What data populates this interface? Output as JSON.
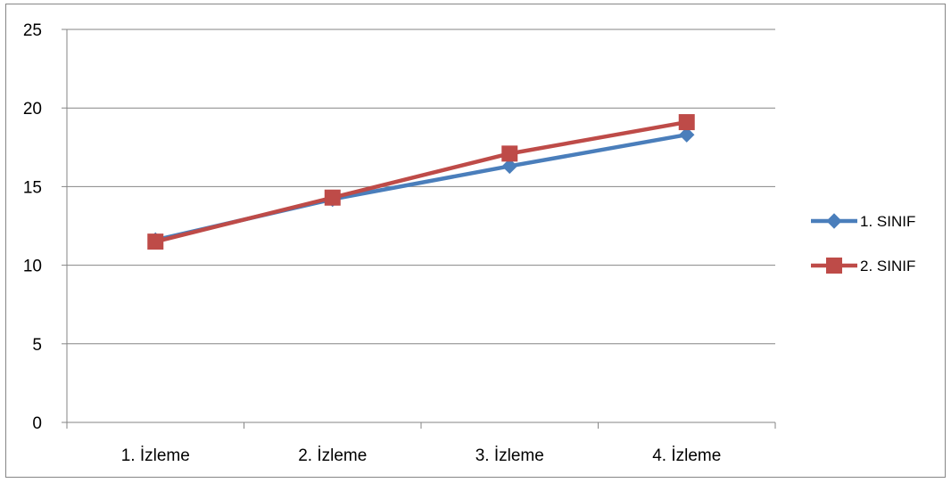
{
  "chart_data": {
    "type": "line",
    "categories": [
      "1. İzleme",
      "2. İzleme",
      "3. İzleme",
      "4. İzleme"
    ],
    "ylim": [
      0,
      25
    ],
    "yticks": [
      0,
      5,
      10,
      15,
      20,
      25
    ],
    "grid": true,
    "legend_position": "right",
    "series": [
      {
        "name": "1. SINIF",
        "values": [
          11.6,
          14.2,
          16.3,
          18.3
        ],
        "color": "#4A7EBB",
        "marker": "diamond"
      },
      {
        "name": "2. SINIF",
        "values": [
          11.5,
          14.3,
          17.1,
          19.1
        ],
        "color": "#BE4B48",
        "marker": "square"
      }
    ]
  }
}
